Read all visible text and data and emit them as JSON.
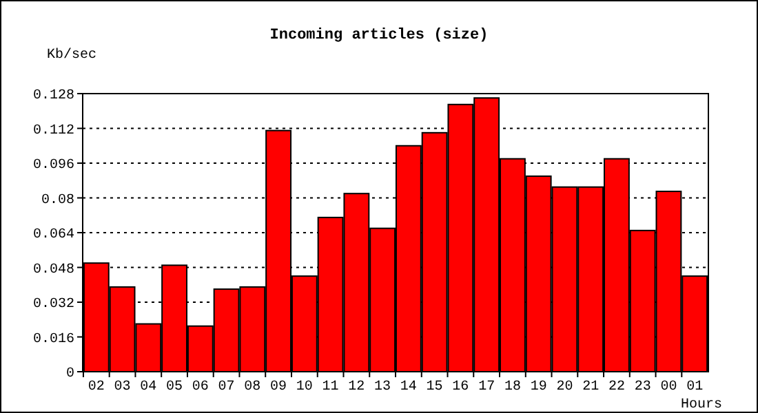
{
  "chart_data": {
    "type": "bar",
    "title": "Incoming articles (size)",
    "ylabel": "Kb/sec",
    "xlabel": "Hours",
    "categories": [
      "02",
      "03",
      "04",
      "05",
      "06",
      "07",
      "08",
      "09",
      "10",
      "11",
      "12",
      "13",
      "14",
      "15",
      "16",
      "17",
      "18",
      "19",
      "20",
      "21",
      "22",
      "23",
      "00",
      "01"
    ],
    "values": [
      0.05,
      0.039,
      0.022,
      0.049,
      0.021,
      0.038,
      0.039,
      0.111,
      0.044,
      0.071,
      0.082,
      0.066,
      0.104,
      0.11,
      0.123,
      0.126,
      0.098,
      0.09,
      0.085,
      0.085,
      0.098,
      0.065,
      0.083,
      0.044
    ],
    "color": "#ff0000",
    "ylim": [
      0,
      0.128
    ],
    "yticks": [
      0,
      0.016,
      0.032,
      0.048,
      0.064,
      {
        "value": 0.08,
        "label": "0.08"
      },
      0.096,
      0.112,
      0.128
    ],
    "grid": "y"
  }
}
